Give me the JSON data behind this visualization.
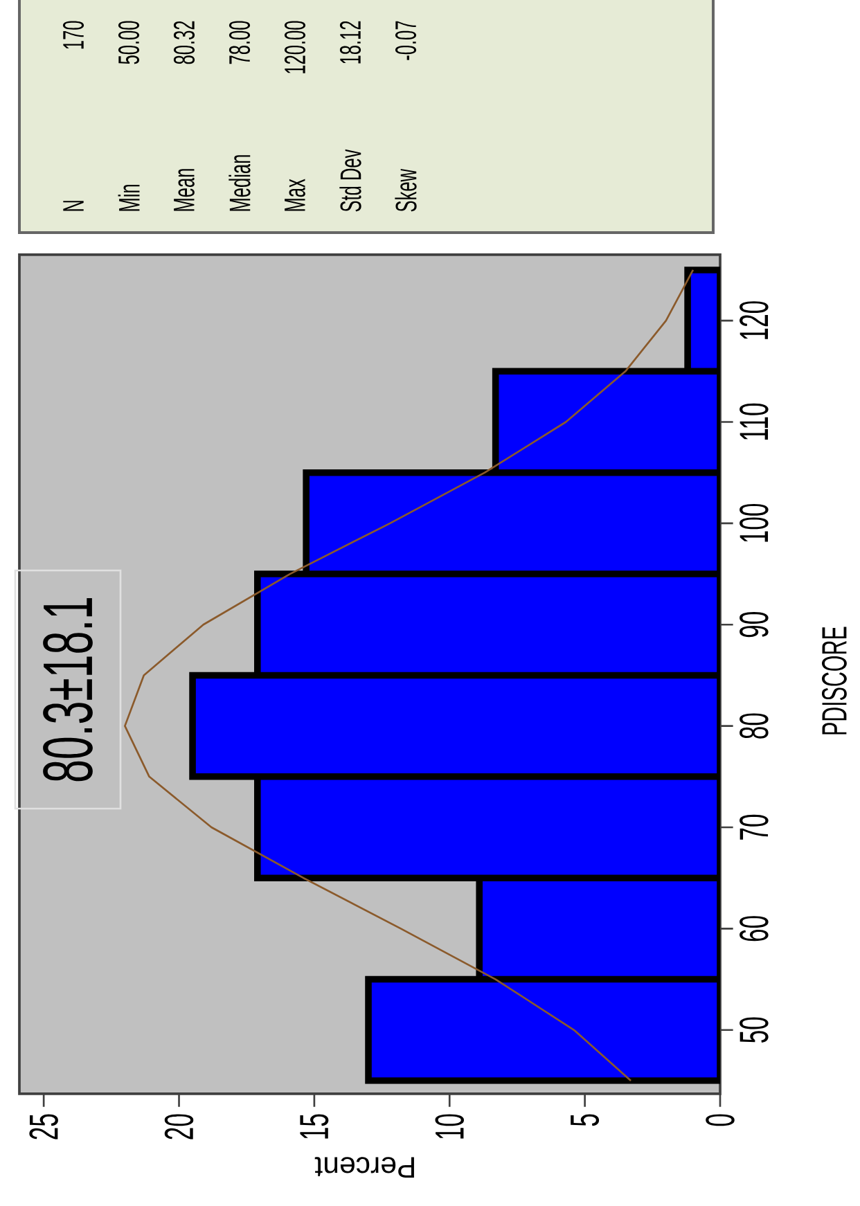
{
  "chart_data": {
    "type": "histogram",
    "orientation": "horizontal",
    "xlabel": "Percent",
    "ylabel": "PDISCORE",
    "bins": [
      45,
      55,
      65,
      75,
      85,
      95,
      105,
      115,
      125
    ],
    "values": [
      13.0,
      8.9,
      17.1,
      19.5,
      17.1,
      15.3,
      8.3,
      1.2
    ],
    "color": "#0000ff",
    "xlim": [
      25.9,
      0
    ],
    "ylim": [
      43.7,
      126.5
    ],
    "xticks": [
      25,
      20,
      15,
      10,
      5,
      0
    ],
    "yticks": [
      50,
      60,
      70,
      80,
      90,
      100,
      110,
      120
    ],
    "series": [
      {
        "type": "line",
        "x": [
          45,
          50,
          55,
          60,
          65,
          70,
          75,
          80,
          85,
          90,
          95,
          100,
          105,
          110,
          115,
          120,
          125
        ],
        "values": [
          3.3,
          5.4,
          8.3,
          11.8,
          15.4,
          18.8,
          21.1,
          22.0,
          21.3,
          19.1,
          15.9,
          12.2,
          8.7,
          5.7,
          3.5,
          2.0,
          1.0
        ],
        "color": "#8b5a2b"
      }
    ],
    "annotations": [
      "80.3±18.1",
      "N",
      "170",
      "Min",
      "50.00",
      "Mean",
      "80.32",
      "Median",
      "78.00",
      "Max",
      "120.00",
      "Std Dev",
      "18.12",
      "Skew",
      "-0.07"
    ]
  }
}
